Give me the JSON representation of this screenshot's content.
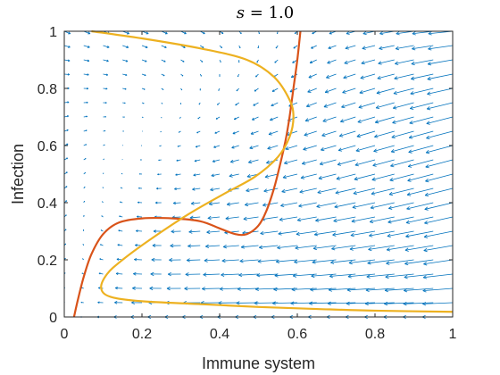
{
  "chart_data": {
    "type": "line",
    "title": "s = 1.0",
    "title_var": "s",
    "title_rest": " = 1.0",
    "xlabel": "Immune system",
    "ylabel": "Infection",
    "xlim": [
      0,
      1
    ],
    "ylim": [
      0,
      1
    ],
    "xticks": [
      "0",
      "0.2",
      "0.4",
      "0.6",
      "0.8",
      "1"
    ],
    "yticks": [
      "0",
      "0.2",
      "0.4",
      "0.6",
      "0.8",
      "1"
    ],
    "grid": false,
    "legend": "none",
    "colors": {
      "vector_field": "#0072BD",
      "series_1": "#D95319",
      "series_2": "#EDB120",
      "axes": "#262626"
    },
    "vector_field": {
      "nx": 21,
      "ny": 21,
      "xrange": [
        0,
        1
      ],
      "yrange": [
        0,
        1
      ]
    },
    "series": [
      {
        "color": "#D95319",
        "x": [
          0.025,
          0.035,
          0.05,
          0.07,
          0.1,
          0.14,
          0.2,
          0.28,
          0.35,
          0.4,
          0.44,
          0.47,
          0.5,
          0.52,
          0.54,
          0.555,
          0.57,
          0.58,
          0.59,
          0.6,
          0.608
        ],
        "y": [
          0.0,
          0.06,
          0.14,
          0.22,
          0.29,
          0.33,
          0.345,
          0.345,
          0.335,
          0.31,
          0.29,
          0.29,
          0.32,
          0.37,
          0.45,
          0.53,
          0.62,
          0.7,
          0.8,
          0.9,
          1.0
        ]
      },
      {
        "color": "#EDB120",
        "x": [
          0.07,
          0.2,
          0.35,
          0.47,
          0.54,
          0.58,
          0.59,
          0.58,
          0.55,
          0.49,
          0.41,
          0.32,
          0.22,
          0.15,
          0.11,
          0.095,
          0.12,
          0.2,
          0.35,
          0.5,
          0.65,
          0.8,
          1.0
        ],
        "y": [
          1.0,
          0.975,
          0.94,
          0.9,
          0.84,
          0.76,
          0.7,
          0.63,
          0.56,
          0.49,
          0.43,
          0.36,
          0.27,
          0.2,
          0.15,
          0.1,
          0.07,
          0.055,
          0.045,
          0.035,
          0.028,
          0.022,
          0.018
        ]
      }
    ]
  }
}
